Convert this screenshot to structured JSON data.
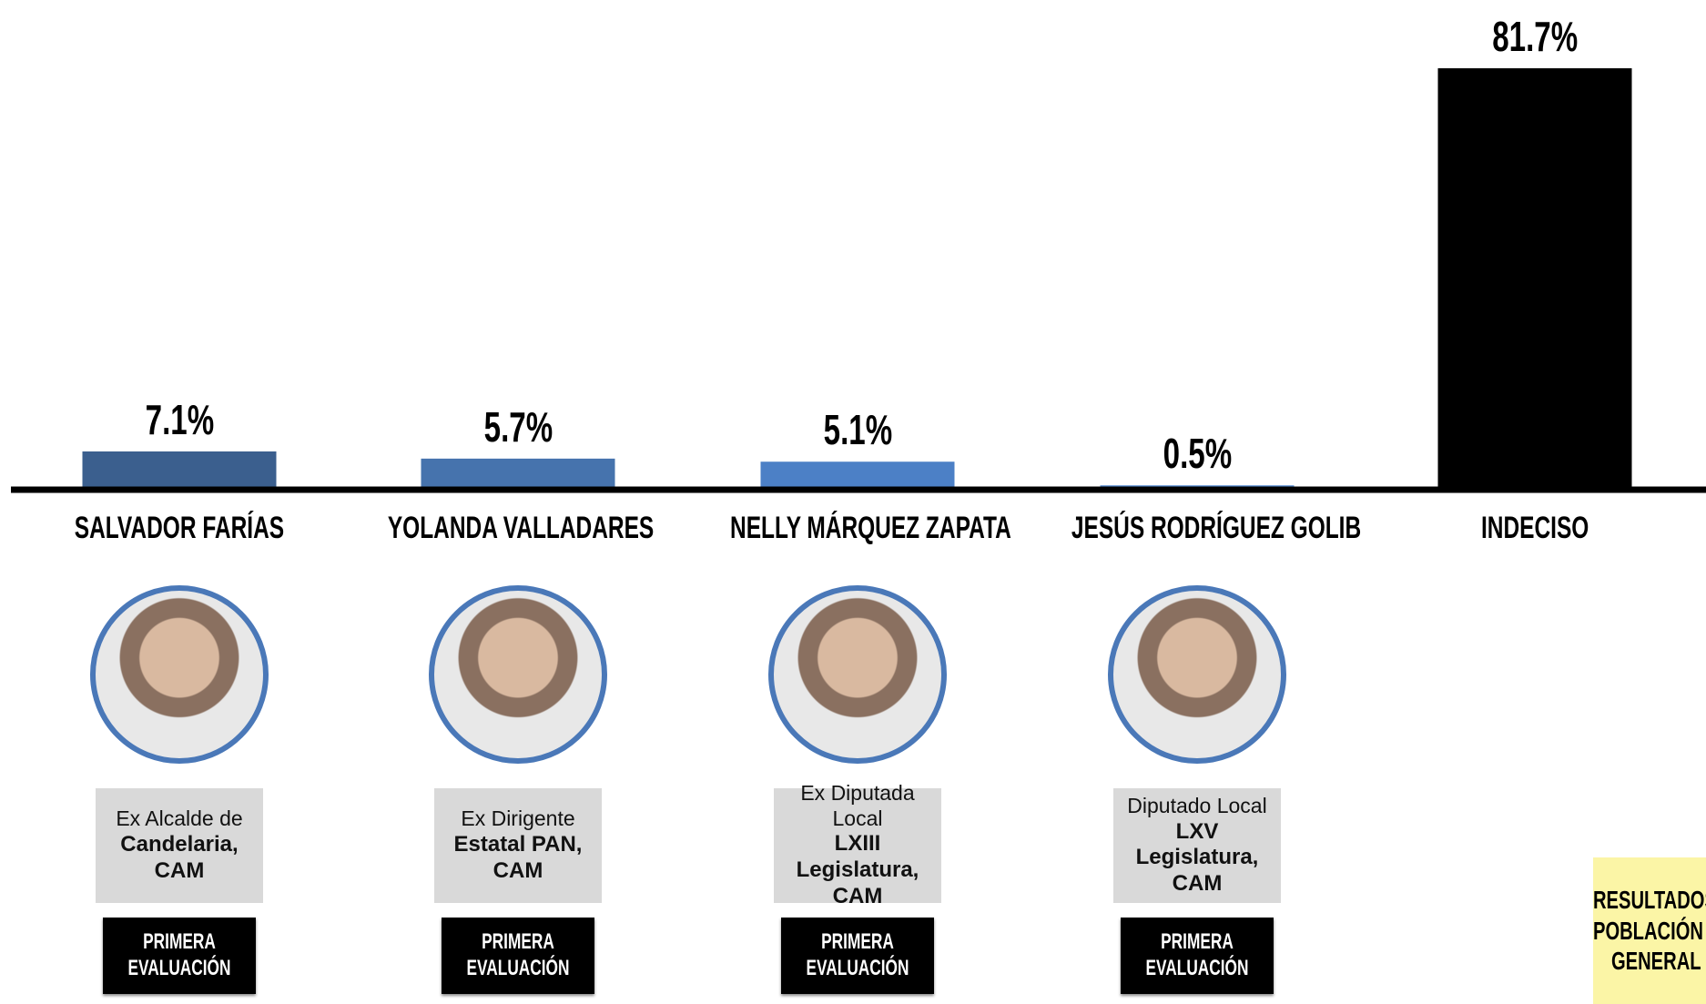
{
  "chart_data": {
    "type": "bar",
    "categories": [
      "SALVADOR FARÍAS",
      "YOLANDA VALLADARES",
      "NELLY MÁRQUEZ ZAPATA",
      "JESÚS RODRÍGUEZ GOLIB",
      "INDECISO"
    ],
    "values": [
      7.1,
      5.7,
      5.1,
      0.5,
      81.7
    ],
    "value_labels": [
      "7.1%",
      "5.7%",
      "5.1%",
      "0.5%",
      "81.7%"
    ],
    "colors": [
      "#3b5f8e",
      "#4673ad",
      "#4c80c6",
      "#5a8fd3",
      "#000000"
    ]
  },
  "profiles": [
    {
      "role": "Ex Alcalde de",
      "detail": "Candelaria, CAM",
      "badge": "PRIMERA EVALUACIÓN"
    },
    {
      "role": "Ex Dirigente",
      "detail": "Estatal PAN, CAM",
      "badge": "PRIMERA EVALUACIÓN"
    },
    {
      "role": "Ex Diputada Local",
      "detail": "LXIII Legislatura, CAM",
      "badge": "PRIMERA EVALUACIÓN"
    },
    {
      "role": "Diputado Local",
      "detail": "LXV Legislatura, CAM",
      "badge": "PRIMERA EVALUACIÓN"
    }
  ],
  "note": [
    "RESULTADOS",
    "POBLACIÓN",
    "GENERAL"
  ]
}
